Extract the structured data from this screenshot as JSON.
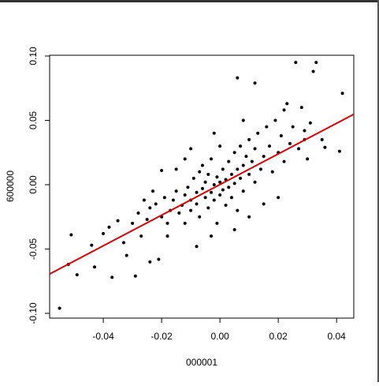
{
  "chart_data": {
    "type": "scatter",
    "x_label": "000001",
    "y_label": "600000",
    "color": "#000000",
    "xlim": [
      -0.0584,
      0.0459
    ],
    "ylim": [
      -0.1037,
      0.1006
    ],
    "xticks": [
      -0.04,
      -0.02,
      {
        "value": 0,
        "label": "0.00"
      },
      0.02,
      0.04
    ],
    "yticks": [
      {
        "value": -0.1,
        "label": "-0.10"
      },
      -0.05,
      {
        "value": 0,
        "label": "0.00"
      },
      0.05,
      {
        "value": 0.1,
        "label": "0.10"
      }
    ],
    "abline": {
      "intercept": 0.0001,
      "slope": 1.19,
      "color": "#e00000"
    },
    "x": [
      -0.055,
      -0.052,
      -0.051,
      -0.049,
      0.026,
      0.033,
      0.032,
      0.042,
      0.006,
      0.012,
      0.041,
      0.036,
      -0.037,
      -0.029,
      -0.043,
      -0.044,
      -0.04,
      -0.021,
      -0.02,
      0.023,
      0.028,
      0.029,
      -0.03,
      -0.028,
      -0.025,
      -0.024,
      -0.022,
      -0.02,
      -0.019,
      -0.018,
      -0.017,
      -0.016,
      -0.015,
      -0.014,
      -0.013,
      -0.012,
      -0.012,
      -0.011,
      -0.01,
      -0.01,
      -0.009,
      -0.008,
      -0.008,
      -0.007,
      -0.007,
      -0.006,
      -0.006,
      -0.005,
      -0.005,
      -0.004,
      -0.004,
      -0.003,
      -0.003,
      -0.002,
      -0.002,
      -0.001,
      -0.001,
      0.0,
      0.0,
      0.001,
      0.001,
      0.002,
      0.002,
      0.003,
      0.003,
      0.004,
      0.004,
      0.005,
      0.005,
      0.006,
      0.006,
      0.007,
      0.007,
      0.008,
      0.008,
      0.009,
      0.01,
      0.01,
      0.011,
      0.012,
      0.012,
      0.013,
      0.014,
      0.015,
      0.016,
      0.017,
      0.018,
      0.019,
      0.02,
      0.021,
      0.022,
      0.024,
      0.025,
      0.027,
      0.029,
      0.03,
      0.031,
      -0.033,
      -0.035,
      -0.038,
      -0.027,
      -0.023,
      -0.026,
      -0.015,
      -0.012,
      0.0,
      -0.003,
      0.005,
      -0.008,
      -0.024,
      -0.032,
      0.02,
      0.015,
      -0.01,
      0.008,
      -0.002,
      0.022,
      0.035,
      0.01,
      -0.018
    ],
    "y": [
      -0.096,
      -0.062,
      -0.039,
      -0.07,
      0.095,
      0.095,
      0.088,
      0.071,
      0.083,
      0.079,
      0.026,
      0.029,
      -0.072,
      -0.071,
      -0.064,
      -0.047,
      -0.038,
      -0.058,
      0.011,
      0.063,
      0.06,
      0.042,
      -0.03,
      -0.022,
      -0.027,
      -0.018,
      -0.015,
      -0.025,
      -0.01,
      -0.03,
      -0.02,
      -0.012,
      -0.005,
      -0.022,
      -0.016,
      -0.008,
      -0.03,
      -0.002,
      -0.012,
      -0.02,
      0.005,
      -0.006,
      -0.015,
      0.01,
      -0.025,
      -0.003,
      0.015,
      -0.01,
      0.002,
      -0.018,
      0.008,
      -0.006,
      0.02,
      0.0,
      -0.012,
      0.006,
      -0.03,
      0.002,
      -0.008,
      0.012,
      -0.004,
      0.004,
      -0.016,
      0.018,
      -0.002,
      0.008,
      -0.01,
      0.025,
      0.001,
      0.012,
      -0.02,
      0.005,
      0.03,
      0.015,
      -0.005,
      0.022,
      0.008,
      0.035,
      0.018,
      0.002,
      0.028,
      0.04,
      0.012,
      0.022,
      0.045,
      0.03,
      0.01,
      0.05,
      0.025,
      0.038,
      0.018,
      0.032,
      0.045,
      0.028,
      0.035,
      0.02,
      0.048,
      -0.045,
      -0.028,
      -0.033,
      -0.04,
      -0.005,
      -0.012,
      0.012,
      0.02,
      0.03,
      -0.04,
      -0.035,
      -0.048,
      -0.06,
      -0.055,
      -0.01,
      -0.015,
      0.028,
      0.05,
      0.04,
      0.058,
      0.035,
      -0.025,
      -0.04
    ]
  }
}
